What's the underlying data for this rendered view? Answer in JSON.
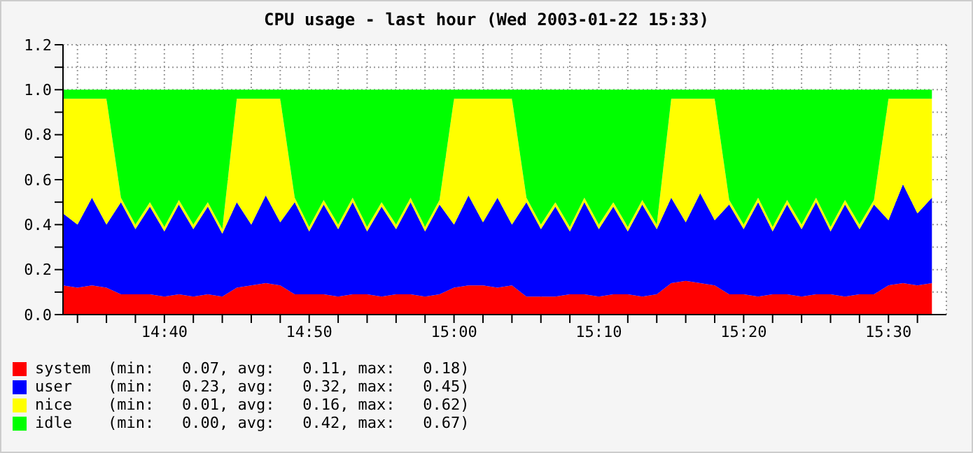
{
  "chart_data": {
    "type": "area",
    "title": "CPU usage - last hour (Wed 2003-01-22 15:33)",
    "stacked": true,
    "grid": true,
    "legend": "bottom",
    "x": [
      "2003-01-22T14:33",
      "2003-01-22T14:34",
      "2003-01-22T14:35",
      "2003-01-22T14:36",
      "2003-01-22T14:37",
      "2003-01-22T14:38",
      "2003-01-22T14:39",
      "2003-01-22T14:40",
      "2003-01-22T14:41",
      "2003-01-22T14:42",
      "2003-01-22T14:43",
      "2003-01-22T14:44",
      "2003-01-22T14:45",
      "2003-01-22T14:46",
      "2003-01-22T14:47",
      "2003-01-22T14:48",
      "2003-01-22T14:49",
      "2003-01-22T14:50",
      "2003-01-22T14:51",
      "2003-01-22T14:52",
      "2003-01-22T14:53",
      "2003-01-22T14:54",
      "2003-01-22T14:55",
      "2003-01-22T14:56",
      "2003-01-22T14:57",
      "2003-01-22T14:58",
      "2003-01-22T14:59",
      "2003-01-22T15:00",
      "2003-01-22T15:01",
      "2003-01-22T15:02",
      "2003-01-22T15:03",
      "2003-01-22T15:04",
      "2003-01-22T15:05",
      "2003-01-22T15:06",
      "2003-01-22T15:07",
      "2003-01-22T15:08",
      "2003-01-22T15:09",
      "2003-01-22T15:10",
      "2003-01-22T15:11",
      "2003-01-22T15:12",
      "2003-01-22T15:13",
      "2003-01-22T15:14",
      "2003-01-22T15:15",
      "2003-01-22T15:16",
      "2003-01-22T15:17",
      "2003-01-22T15:18",
      "2003-01-22T15:19",
      "2003-01-22T15:20",
      "2003-01-22T15:21",
      "2003-01-22T15:22",
      "2003-01-22T15:23",
      "2003-01-22T15:24",
      "2003-01-22T15:25",
      "2003-01-22T15:26",
      "2003-01-22T15:27",
      "2003-01-22T15:28",
      "2003-01-22T15:29",
      "2003-01-22T15:30",
      "2003-01-22T15:31",
      "2003-01-22T15:32",
      "2003-01-22T15:33"
    ],
    "series": [
      {
        "name": "system",
        "color": "#ff0000",
        "values": [
          0.13,
          0.12,
          0.13,
          0.12,
          0.09,
          0.09,
          0.09,
          0.08,
          0.09,
          0.08,
          0.09,
          0.08,
          0.12,
          0.13,
          0.14,
          0.13,
          0.09,
          0.09,
          0.09,
          0.08,
          0.09,
          0.09,
          0.08,
          0.09,
          0.09,
          0.08,
          0.09,
          0.12,
          0.13,
          0.13,
          0.12,
          0.13,
          0.08,
          0.08,
          0.08,
          0.09,
          0.09,
          0.08,
          0.09,
          0.09,
          0.08,
          0.09,
          0.14,
          0.15,
          0.14,
          0.13,
          0.09,
          0.09,
          0.08,
          0.09,
          0.09,
          0.08,
          0.09,
          0.09,
          0.08,
          0.09,
          0.09,
          0.13,
          0.14,
          0.13,
          0.14
        ]
      },
      {
        "name": "user",
        "color": "#0000ff",
        "values": [
          0.32,
          0.28,
          0.39,
          0.28,
          0.41,
          0.29,
          0.39,
          0.29,
          0.4,
          0.3,
          0.39,
          0.28,
          0.38,
          0.27,
          0.39,
          0.28,
          0.41,
          0.28,
          0.4,
          0.3,
          0.41,
          0.28,
          0.4,
          0.29,
          0.41,
          0.29,
          0.4,
          0.28,
          0.4,
          0.28,
          0.4,
          0.27,
          0.42,
          0.3,
          0.4,
          0.28,
          0.41,
          0.3,
          0.39,
          0.28,
          0.41,
          0.29,
          0.38,
          0.26,
          0.4,
          0.29,
          0.4,
          0.29,
          0.42,
          0.28,
          0.4,
          0.3,
          0.41,
          0.28,
          0.41,
          0.29,
          0.4,
          0.29,
          0.44,
          0.32,
          0.38
        ]
      },
      {
        "name": "nice",
        "color": "#ffff00",
        "values": [
          0.51,
          0.56,
          0.44,
          0.56,
          0.02,
          0.02,
          0.02,
          0.02,
          0.02,
          0.02,
          0.02,
          0.02,
          0.46,
          0.56,
          0.43,
          0.55,
          0.02,
          0.02,
          0.02,
          0.02,
          0.02,
          0.02,
          0.02,
          0.02,
          0.02,
          0.02,
          0.02,
          0.56,
          0.43,
          0.55,
          0.44,
          0.56,
          0.02,
          0.02,
          0.02,
          0.02,
          0.02,
          0.02,
          0.02,
          0.02,
          0.02,
          0.02,
          0.44,
          0.55,
          0.42,
          0.54,
          0.02,
          0.02,
          0.02,
          0.02,
          0.02,
          0.02,
          0.02,
          0.02,
          0.02,
          0.02,
          0.02,
          0.54,
          0.38,
          0.51,
          0.44
        ]
      },
      {
        "name": "idle",
        "color": "#00ff00",
        "values": [
          0.04,
          0.04,
          0.04,
          0.04,
          0.48,
          0.6,
          0.5,
          0.61,
          0.49,
          0.6,
          0.5,
          0.62,
          0.04,
          0.04,
          0.04,
          0.04,
          0.48,
          0.61,
          0.49,
          0.6,
          0.48,
          0.61,
          0.5,
          0.6,
          0.48,
          0.61,
          0.49,
          0.04,
          0.04,
          0.04,
          0.04,
          0.04,
          0.48,
          0.6,
          0.5,
          0.61,
          0.48,
          0.6,
          0.5,
          0.61,
          0.49,
          0.6,
          0.04,
          0.04,
          0.04,
          0.04,
          0.49,
          0.6,
          0.48,
          0.61,
          0.49,
          0.6,
          0.48,
          0.61,
          0.49,
          0.6,
          0.49,
          0.04,
          0.04,
          0.04,
          0.04
        ]
      }
    ],
    "xlim": [
      "2003-01-22T14:33",
      "2003-01-22T15:34"
    ],
    "xticks": [
      {
        "value": "2003-01-22T14:34",
        "label": null
      },
      {
        "value": "2003-01-22T14:36",
        "label": null
      },
      {
        "value": "2003-01-22T14:38",
        "label": null
      },
      {
        "value": "2003-01-22T14:40",
        "label": "14:40"
      },
      {
        "value": "2003-01-22T14:42",
        "label": null
      },
      {
        "value": "2003-01-22T14:44",
        "label": null
      },
      {
        "value": "2003-01-22T14:46",
        "label": null
      },
      {
        "value": "2003-01-22T14:48",
        "label": null
      },
      {
        "value": "2003-01-22T14:50",
        "label": "14:50"
      },
      {
        "value": "2003-01-22T14:52",
        "label": null
      },
      {
        "value": "2003-01-22T14:54",
        "label": null
      },
      {
        "value": "2003-01-22T14:56",
        "label": null
      },
      {
        "value": "2003-01-22T14:58",
        "label": null
      },
      {
        "value": "2003-01-22T15:00",
        "label": "15:00"
      },
      {
        "value": "2003-01-22T15:02",
        "label": null
      },
      {
        "value": "2003-01-22T15:04",
        "label": null
      },
      {
        "value": "2003-01-22T15:06",
        "label": null
      },
      {
        "value": "2003-01-22T15:08",
        "label": null
      },
      {
        "value": "2003-01-22T15:10",
        "label": "15:10"
      },
      {
        "value": "2003-01-22T15:12",
        "label": null
      },
      {
        "value": "2003-01-22T15:14",
        "label": null
      },
      {
        "value": "2003-01-22T15:16",
        "label": null
      },
      {
        "value": "2003-01-22T15:18",
        "label": null
      },
      {
        "value": "2003-01-22T15:20",
        "label": "15:20"
      },
      {
        "value": "2003-01-22T15:22",
        "label": null
      },
      {
        "value": "2003-01-22T15:24",
        "label": null
      },
      {
        "value": "2003-01-22T15:26",
        "label": null
      },
      {
        "value": "2003-01-22T15:28",
        "label": null
      },
      {
        "value": "2003-01-22T15:30",
        "label": "15:30"
      },
      {
        "value": "2003-01-22T15:32",
        "label": null
      }
    ],
    "ylim": [
      0,
      1.2
    ],
    "yticks": [
      {
        "value": 0,
        "label": "0.0"
      },
      {
        "value": 0.1,
        "label": null
      },
      {
        "value": 0.2,
        "label": "0.2"
      },
      {
        "value": 0.3,
        "label": null
      },
      {
        "value": 0.4,
        "label": "0.4"
      },
      {
        "value": 0.5,
        "label": null
      },
      {
        "value": 0.6,
        "label": "0.6"
      },
      {
        "value": 0.7,
        "label": null
      },
      {
        "value": 0.8,
        "label": "0.8"
      },
      {
        "value": 0.9,
        "label": null
      },
      {
        "value": 1,
        "label": "1.0"
      },
      {
        "value": 1.1,
        "label": null
      },
      {
        "value": 1.2,
        "label": "1.2"
      }
    ],
    "annotations": [
      "(min:   0.07, avg:   0.11, max:   0.18)",
      "(min:   0.23, avg:   0.32, max:   0.45)",
      "(min:   0.01, avg:   0.16, max:   0.62)",
      "(min:   0.00, avg:   0.42, max:   0.67)"
    ]
  }
}
